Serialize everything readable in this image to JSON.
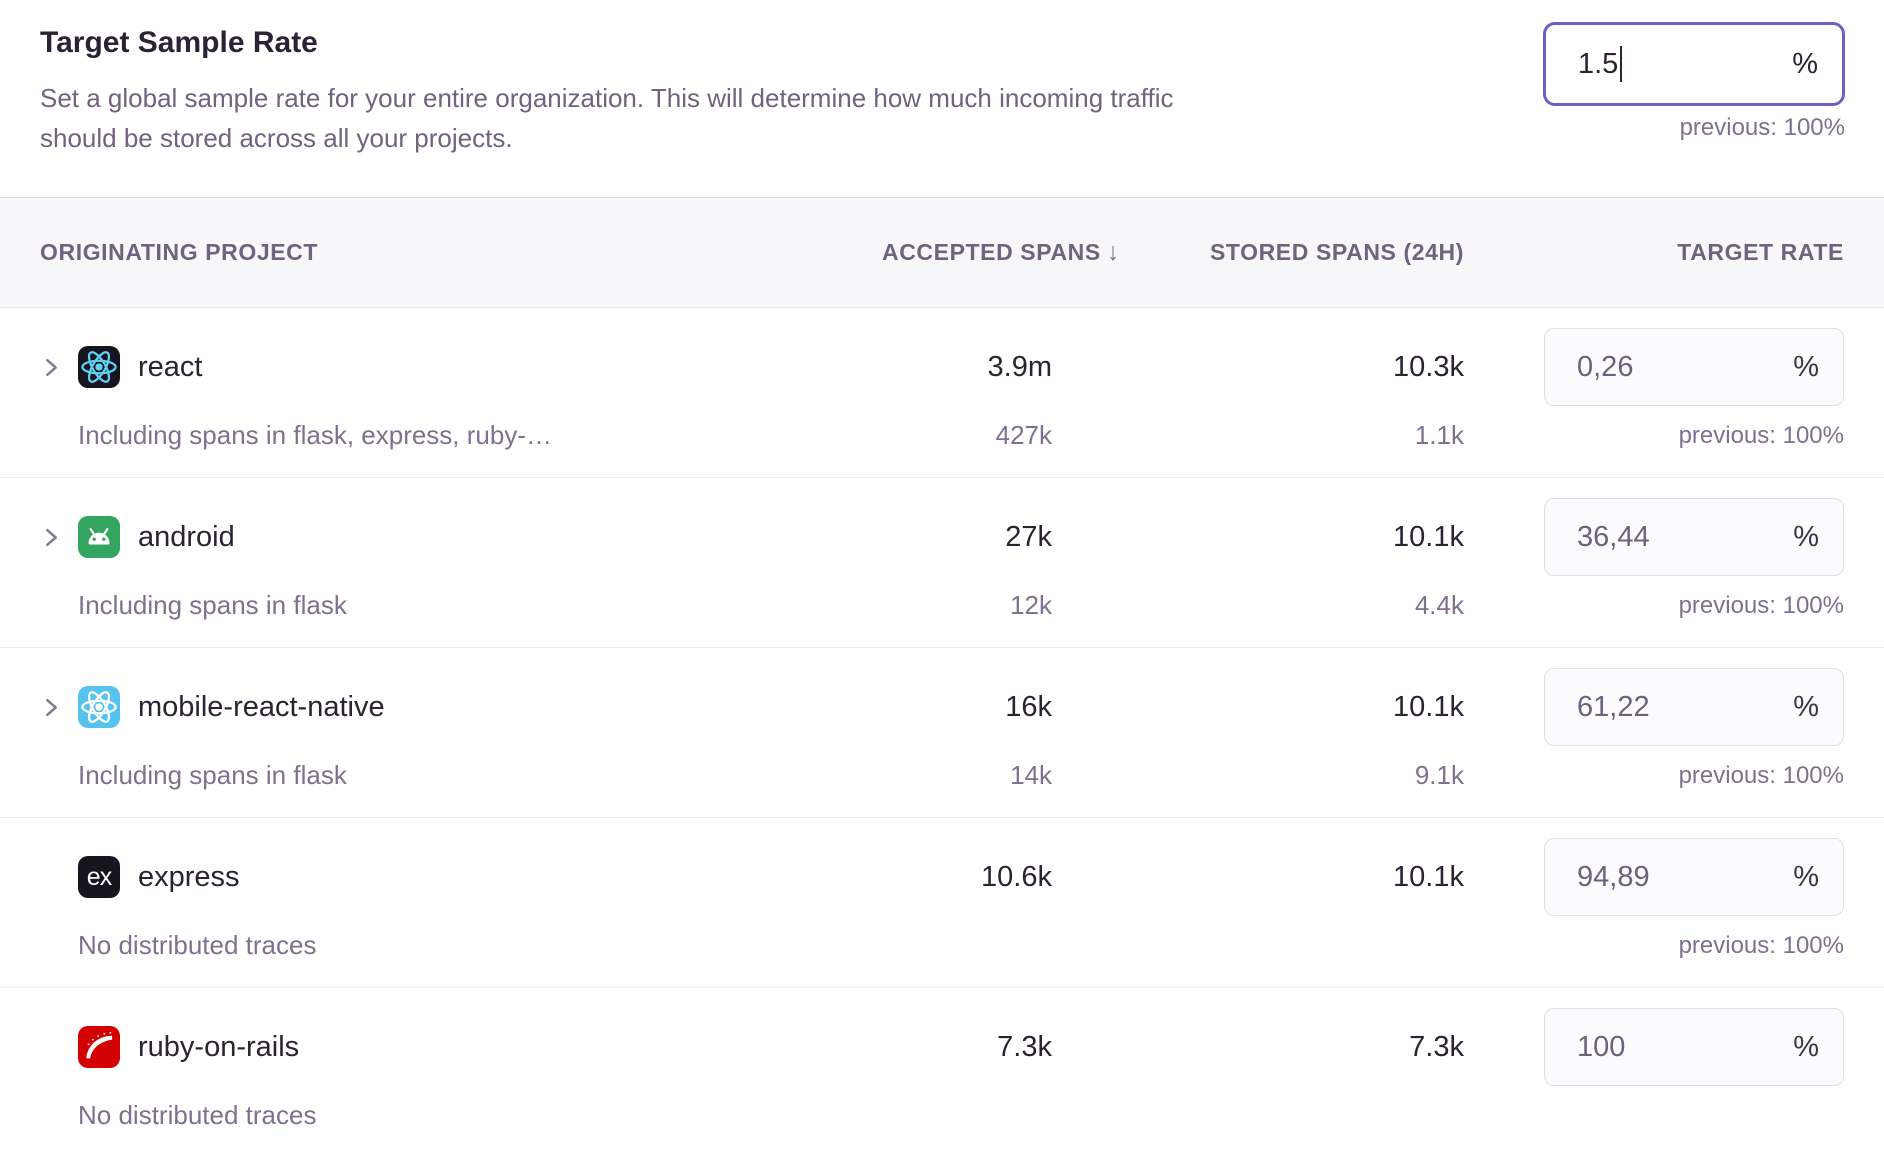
{
  "page": {
    "title": "Target Sample Rate",
    "description_line1": "Set a global sample rate for your entire organization. This will determine how much incoming traffic",
    "description_line2": "should be stored across all your projects.",
    "global_rate": {
      "value": "1.5",
      "suffix": "%",
      "previous": "previous: 100%"
    }
  },
  "table": {
    "columns": {
      "project": "ORIGINATING PROJECT",
      "accepted": "ACCEPTED SPANS",
      "stored": "STORED SPANS (24H)",
      "rate": "TARGET RATE"
    },
    "sort_icon": "↓",
    "rate_suffix": "%",
    "rows": [
      {
        "project": "react",
        "platform": "react",
        "expandable": true,
        "accepted": "3.9m",
        "stored": "10.3k",
        "rate": "0,26",
        "sub_label": "Including spans in flask, express, ruby-…",
        "sub_accepted": "427k",
        "sub_stored": "1.1k",
        "previous": "previous: 100%"
      },
      {
        "project": "android",
        "platform": "android",
        "expandable": true,
        "accepted": "27k",
        "stored": "10.1k",
        "rate": "36,44",
        "sub_label": "Including spans in flask",
        "sub_accepted": "12k",
        "sub_stored": "4.4k",
        "previous": "previous: 100%"
      },
      {
        "project": "mobile-react-native",
        "platform": "react-native",
        "expandable": true,
        "accepted": "16k",
        "stored": "10.1k",
        "rate": "61,22",
        "sub_label": "Including spans in flask",
        "sub_accepted": "14k",
        "sub_stored": "9.1k",
        "previous": "previous: 100%"
      },
      {
        "project": "express",
        "platform": "express",
        "expandable": false,
        "accepted": "10.6k",
        "stored": "10.1k",
        "rate": "94,89",
        "sub_label": "No distributed traces",
        "sub_accepted": "",
        "sub_stored": "",
        "previous": "previous: 100%"
      },
      {
        "project": "ruby-on-rails",
        "platform": "ruby-on-rails",
        "expandable": false,
        "accepted": "7.3k",
        "stored": "7.3k",
        "rate": "100",
        "sub_label": "No distributed traces",
        "sub_accepted": "",
        "sub_stored": "",
        "previous": ""
      }
    ]
  },
  "colors": {
    "accent": "#6c5fc7",
    "react_bg": "#16141f",
    "react_atom": "#5fd1f2",
    "android_bg": "#33a55e",
    "react_native_bg": "#55c3ee",
    "express_bg": "#16141f",
    "rails_bg": "#d30001"
  }
}
